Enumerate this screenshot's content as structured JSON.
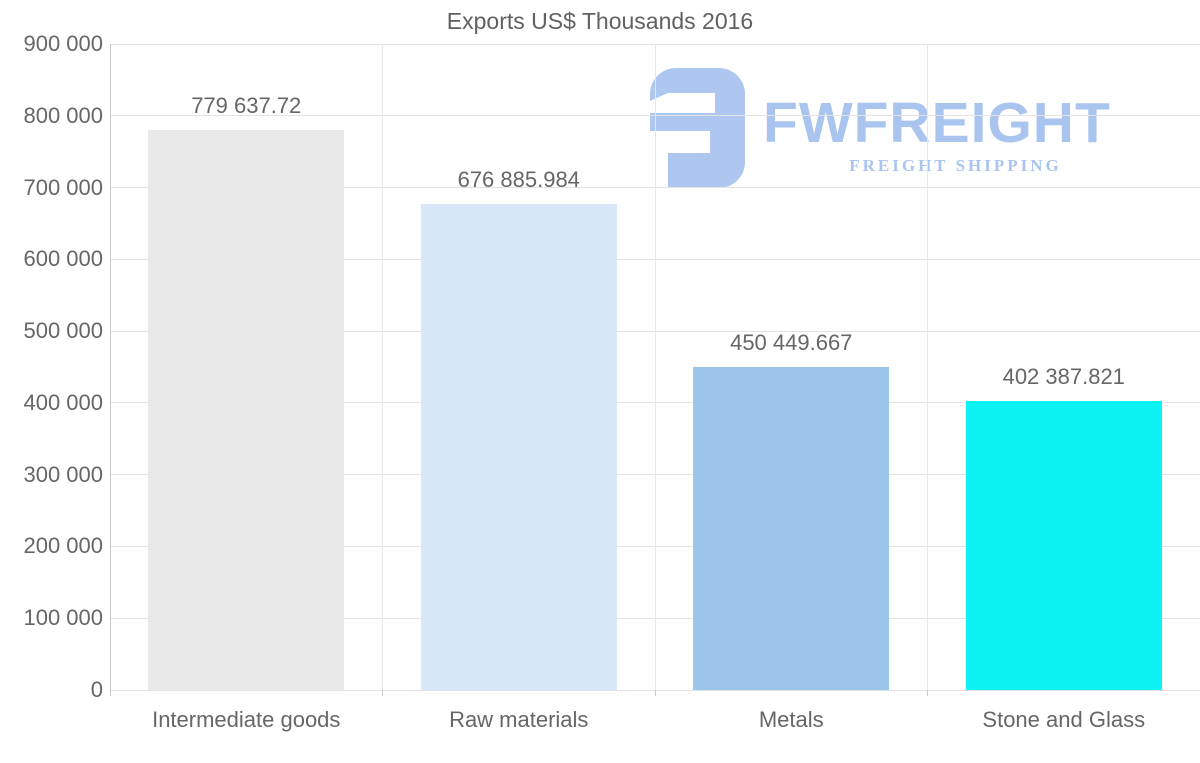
{
  "title": "Exports US$ Thousands 2016",
  "logo": {
    "brand": "FWFREIGHT",
    "tagline": "FREIGHT SHIPPING",
    "text_color": "#a9c4ef",
    "mark_color": "#adc7f0"
  },
  "chart_data": {
    "type": "bar",
    "title": "Exports US$ Thousands 2016",
    "categories": [
      "Intermediate goods",
      "Raw materials",
      "Metals",
      "Stone and Glass"
    ],
    "values": [
      779637.72,
      676885.984,
      450449.667,
      402387.821
    ],
    "value_labels": [
      "779 637.72",
      "676 885.984",
      "450 449.667",
      "402 387.821"
    ],
    "bar_colors": [
      "#e9e9e9",
      "#d8e7f8",
      "#9ac4e8",
      "#0df2f2"
    ],
    "xlabel": "",
    "ylabel": "",
    "ylim": [
      0,
      900000
    ],
    "ytick_step": 100000,
    "ytick_labels": [
      "0",
      "100 000",
      "200 000",
      "300 000",
      "400 000",
      "500 000",
      "600 000",
      "700 000",
      "800 000",
      "900 000"
    ],
    "grid": true,
    "legend": "none",
    "text_color": "#666666",
    "grid_color": "#e3e3e3",
    "axis_color": "#c9c9c9"
  }
}
